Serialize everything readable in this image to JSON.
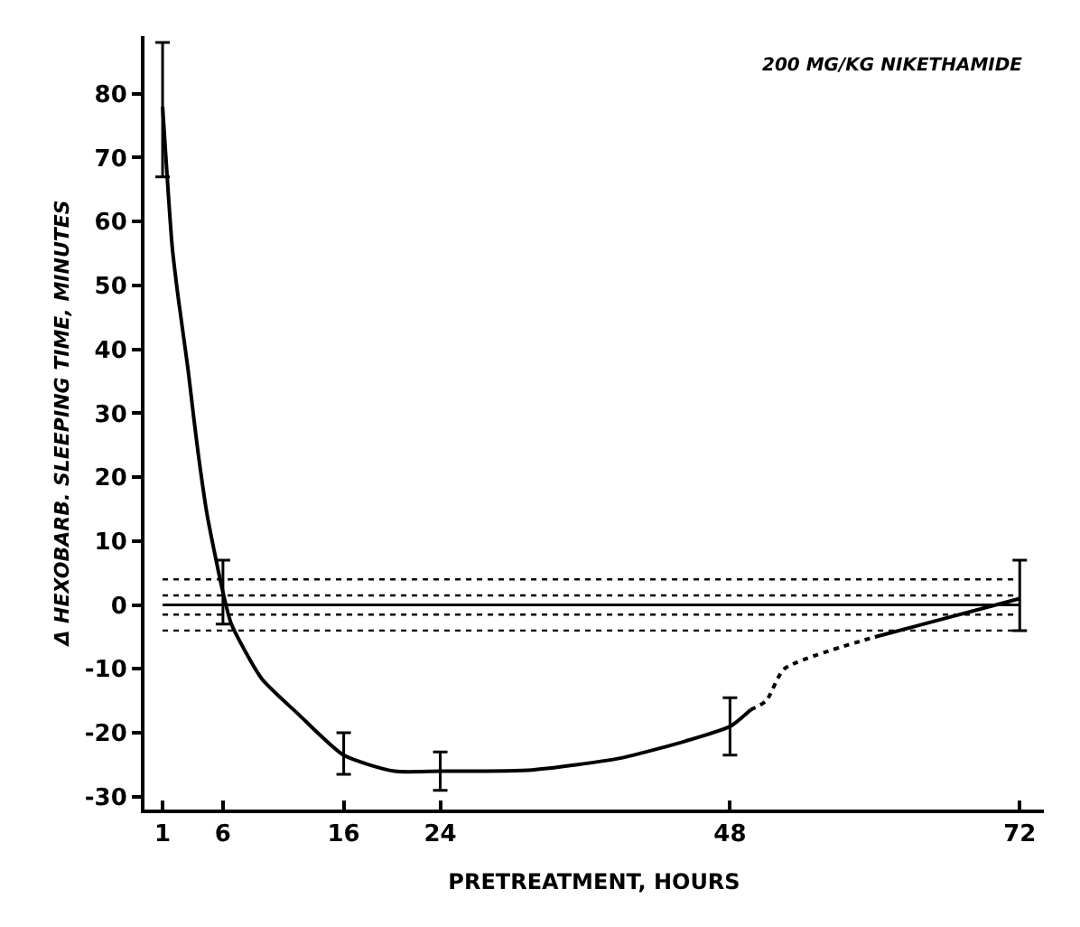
{
  "chart_data": {
    "type": "line",
    "ylabel": "Δ HEXOBARB. SLEEPING TIME, MINUTES",
    "xlabel": "PRETREATMENT, HOURS",
    "annotations": [
      "200 MG/KG NIKETHAMIDE"
    ],
    "series": [
      {
        "color": "#000000",
        "line_style": "solid",
        "x": [
          1,
          1.8,
          2.3,
          3.1,
          3.6,
          4,
          4.7,
          6,
          6.7,
          9.2,
          12.2,
          16,
          20.2,
          24,
          31.6,
          38.8,
          44.3,
          48,
          49.7
        ],
        "values": [
          78,
          56,
          48,
          37,
          29,
          23,
          14,
          2,
          -3,
          -11.5,
          -17,
          -23.5,
          -26,
          -26,
          -25.8,
          -24,
          -21.3,
          -19,
          -16.4
        ],
        "errors": [
          [
            67,
            88
          ],
          null,
          null,
          null,
          null,
          null,
          null,
          [
            -3,
            7
          ],
          null,
          null,
          null,
          [
            -26.5,
            -20
          ],
          null,
          [
            -29,
            -23
          ],
          null,
          null,
          null,
          [
            -23.5,
            -14.5
          ],
          null
        ]
      },
      {
        "color": "#000000",
        "line_style": "dotted",
        "x": [
          49.7,
          51,
          52.5,
          60
        ],
        "values": [
          -16.4,
          -15,
          -10,
          -5
        ]
      },
      {
        "color": "#000000",
        "line_style": "solid",
        "x": [
          60,
          72
        ],
        "values": [
          -5,
          1
        ],
        "errors": [
          null,
          [
            -4,
            7
          ]
        ]
      }
    ],
    "ref_lines": [
      {
        "axis": "y",
        "value": 0,
        "line_style": "solid",
        "color": "#000000"
      },
      {
        "axis": "y",
        "value": 4,
        "line_style": "dotted",
        "color": "#000000"
      },
      {
        "axis": "y",
        "value": 1.5,
        "line_style": "dotted",
        "color": "#000000"
      },
      {
        "axis": "y",
        "value": -1.5,
        "line_style": "dotted",
        "color": "#000000"
      },
      {
        "axis": "y",
        "value": -4,
        "line_style": "dotted",
        "color": "#000000"
      }
    ],
    "marker": "none",
    "grid": false,
    "xlim": [
      -0.5,
      74
    ],
    "xticks": [
      1,
      6,
      16,
      24,
      48,
      72
    ],
    "ylim": [
      -32,
      89
    ],
    "yticks": [
      -30,
      -20,
      -10,
      0,
      10,
      20,
      30,
      40,
      50,
      60,
      70,
      80
    ]
  }
}
